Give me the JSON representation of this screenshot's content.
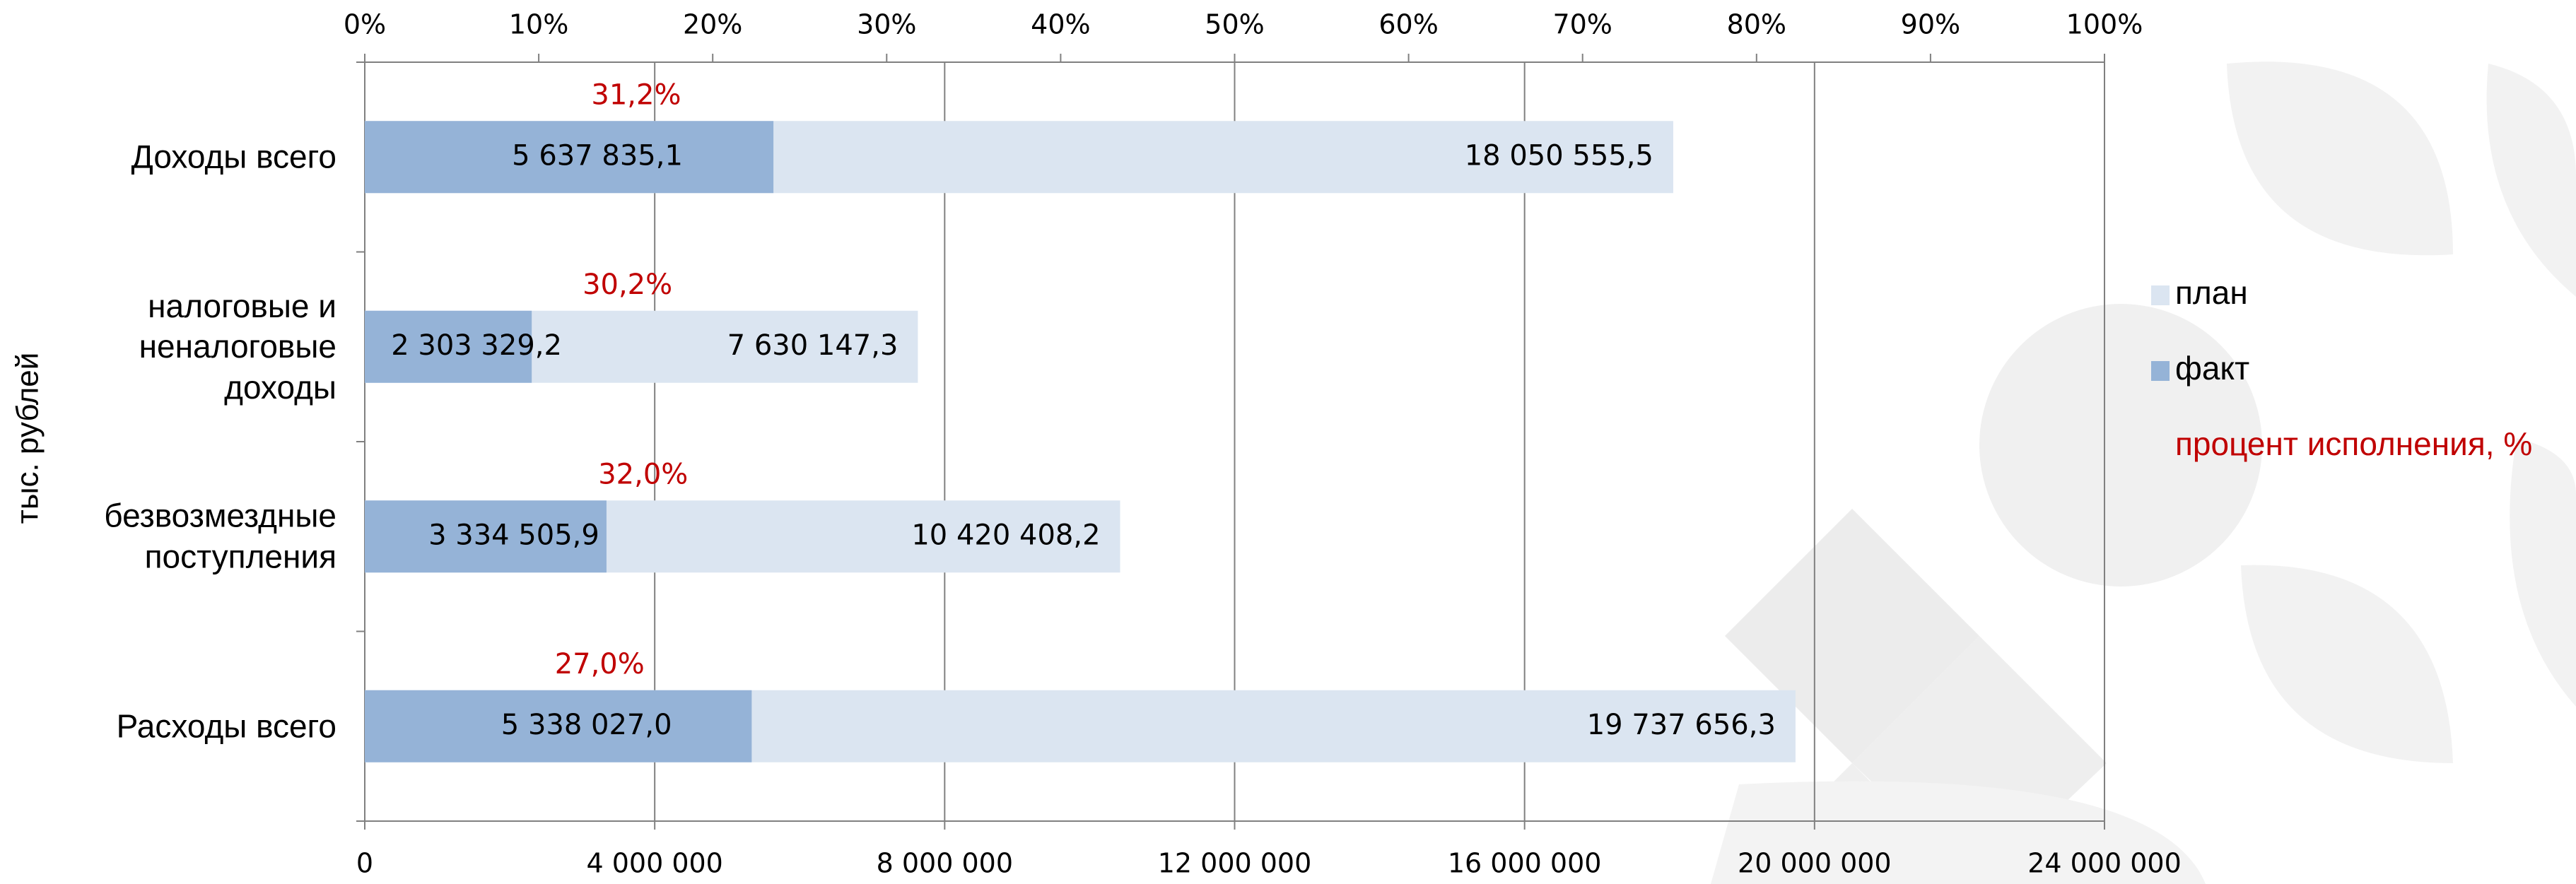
{
  "chart_data": {
    "type": "bar",
    "orientation": "horizontal",
    "ylabel": "тыс. рублей",
    "categories": [
      "Доходы всего",
      "налоговые и\nненалоговые\nдоходы",
      "безвозмездные\nпоступления",
      "Расходы всего"
    ],
    "series": [
      {
        "name": "план",
        "color": "#dbe5f1",
        "values": [
          18050555.5,
          7630147.3,
          10420408.2,
          19737656.3
        ],
        "value_labels": [
          "18 050 555,5",
          "7 630 147,3",
          "10 420 408,2",
          "19 737 656,3"
        ]
      },
      {
        "name": "факт",
        "color": "#95b3d7",
        "values": [
          5637835.1,
          2303329.2,
          3334505.9,
          5338027.0
        ],
        "value_labels": [
          "5 637 835,1",
          "2 303 329,2",
          "3 334 505,9",
          "5 338 027,0"
        ]
      },
      {
        "name": "процент исполнения, %",
        "color": "#c00000",
        "axis": "x2",
        "values": [
          31.2,
          30.2,
          32.0,
          27.0
        ],
        "value_labels": [
          "31,2%",
          "30,2%",
          "32,0%",
          "27,0%"
        ]
      }
    ],
    "xlim": [
      0,
      24000000
    ],
    "xticks": [
      0,
      {
        "value": 4000000,
        "label": "4 000 000"
      },
      {
        "value": 8000000,
        "label": "8 000 000"
      },
      {
        "value": 12000000,
        "label": "12 000 000"
      },
      {
        "value": 16000000,
        "label": "16 000 000"
      },
      {
        "value": 20000000,
        "label": "20 000 000"
      },
      {
        "value": 24000000,
        "label": "24 000 000"
      }
    ],
    "x2lim": [
      0,
      100
    ],
    "x2ticks": [
      {
        "value": 0,
        "label": "0%"
      },
      {
        "value": 10,
        "label": "10%"
      },
      {
        "value": 20,
        "label": "20%"
      },
      {
        "value": 30,
        "label": "30%"
      },
      {
        "value": 40,
        "label": "40%"
      },
      {
        "value": 50,
        "label": "50%"
      },
      {
        "value": 60,
        "label": "60%"
      },
      {
        "value": 70,
        "label": "70%"
      },
      {
        "value": 80,
        "label": "80%"
      },
      {
        "value": 90,
        "label": "90%"
      },
      {
        "value": 100,
        "label": "100%"
      }
    ],
    "grid": true
  }
}
